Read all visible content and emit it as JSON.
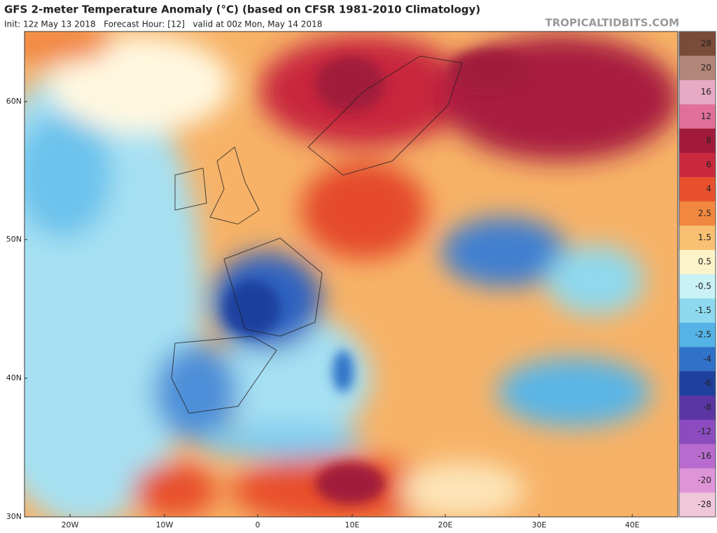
{
  "header": {
    "title": "GFS 2-meter Temperature Anomaly (°C) (based on CFSR 1981-2010 Climatology)",
    "subtitle": "Init: 12z May 13 2018   Forecast Hour: [12]   valid at 00z Mon, May 14 2018",
    "watermark": "TROPICALTIDBITS.COM"
  },
  "map": {
    "lat_labels": [
      "60N",
      "50N",
      "40N",
      "30N"
    ],
    "lon_labels": [
      "20W",
      "10W",
      "0",
      "10E",
      "20E",
      "30E",
      "40E"
    ]
  },
  "colorbar": {
    "ticks": [
      28,
      20,
      16,
      12,
      8,
      6,
      4,
      2.5,
      1.5,
      0.5,
      -0.5,
      -1.5,
      -2.5,
      -4,
      -6,
      -8,
      -12,
      -16,
      -20,
      -28
    ],
    "colors": [
      "#7b4b3a",
      "#b3867a",
      "#e7a9c3",
      "#e0709a",
      "#a11a3a",
      "#c92a3e",
      "#e8502c",
      "#f2873f",
      "#f7c072",
      "#fdf3c8",
      "#c9f1f6",
      "#8fd9ee",
      "#55b3e6",
      "#2f72c8",
      "#1f419d",
      "#5a35a3",
      "#8c4cc0",
      "#b96ccf",
      "#df94d8",
      "#f0c6d9"
    ]
  }
}
